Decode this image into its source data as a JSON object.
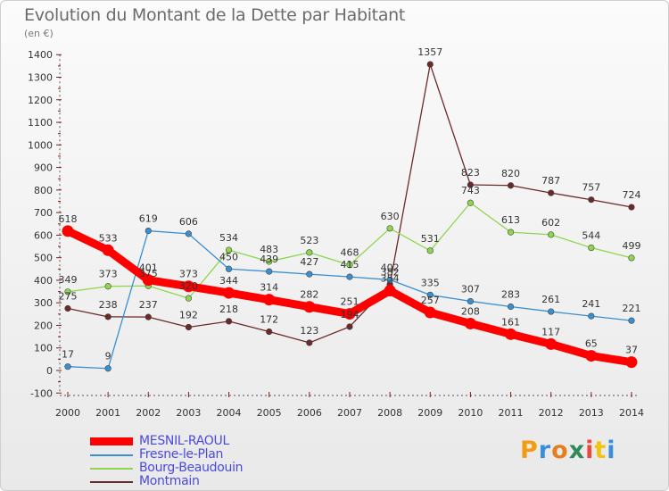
{
  "header": {
    "title": "Evolution du Montant de la Dette par Habitant",
    "unit": "(en €)"
  },
  "brand": {
    "letters": [
      "P",
      "r",
      "o",
      "x",
      "i",
      "t",
      "i"
    ],
    "colors": [
      "#f39c12",
      "#3a8fd8",
      "#e67e22",
      "#2e8b57",
      "#e74c3c",
      "#f1c40f",
      "#3a8fd8"
    ]
  },
  "chart_data": {
    "type": "line",
    "title": "Evolution du Montant de la Dette par Habitant",
    "ylabel": "(en €)",
    "xlabel": "",
    "x": [
      "2000",
      "2001",
      "2002",
      "2003",
      "2004",
      "2005",
      "2006",
      "2007",
      "2008",
      "2009",
      "2010",
      "2011",
      "2012",
      "2013",
      "2014"
    ],
    "yticks": [
      "-100",
      "0",
      "100",
      "200",
      "300",
      "400",
      "500",
      "600",
      "700",
      "800",
      "900",
      "1000",
      "1100",
      "1200",
      "1300",
      "1400"
    ],
    "ylim": [
      -100,
      1400
    ],
    "series": [
      {
        "name": "MESNIL-RAOUL",
        "color": "#ff0000",
        "thick": true,
        "values": [
          618,
          533,
          401,
          373,
          344,
          314,
          282,
          251,
          354,
          257,
          208,
          161,
          117,
          65,
          37
        ],
        "labels": [
          "618",
          "533",
          "401",
          "373",
          "344",
          "314",
          "282",
          "251",
          "354",
          "257",
          "208",
          "161",
          "117",
          "65",
          "37"
        ]
      },
      {
        "name": "Fresne-le-Plan",
        "color": "#3a8fd0",
        "thick": false,
        "values": [
          17,
          9,
          619,
          606,
          450,
          439,
          427,
          415,
          402,
          335,
          307,
          283,
          261,
          241,
          221
        ],
        "labels": [
          "17",
          "9",
          "619",
          "606",
          "450",
          "439",
          "427",
          "415",
          "402",
          "335",
          "307",
          "283",
          "261",
          "241",
          "221"
        ]
      },
      {
        "name": "Bourg-Beaudouin",
        "color": "#8fd64f",
        "thick": false,
        "values": [
          349,
          373,
          375,
          320,
          534,
          483,
          523,
          468,
          630,
          531,
          743,
          613,
          602,
          544,
          499
        ],
        "labels": [
          "349",
          "373",
          "375",
          "320",
          "534",
          "483",
          "523",
          "468",
          "630",
          "531",
          "743",
          "613",
          "602",
          "544",
          "499"
        ]
      },
      {
        "name": "Montmain",
        "color": "#6b2a2a",
        "thick": false,
        "values": [
          275,
          238,
          237,
          192,
          218,
          172,
          123,
          194,
          382,
          1357,
          823,
          820,
          787,
          757,
          724
        ],
        "labels": [
          "275",
          "238",
          "237",
          "192",
          "218",
          "172",
          "123",
          "194",
          "382",
          "1357",
          "823",
          "820",
          "787",
          "757",
          "724"
        ]
      }
    ]
  }
}
